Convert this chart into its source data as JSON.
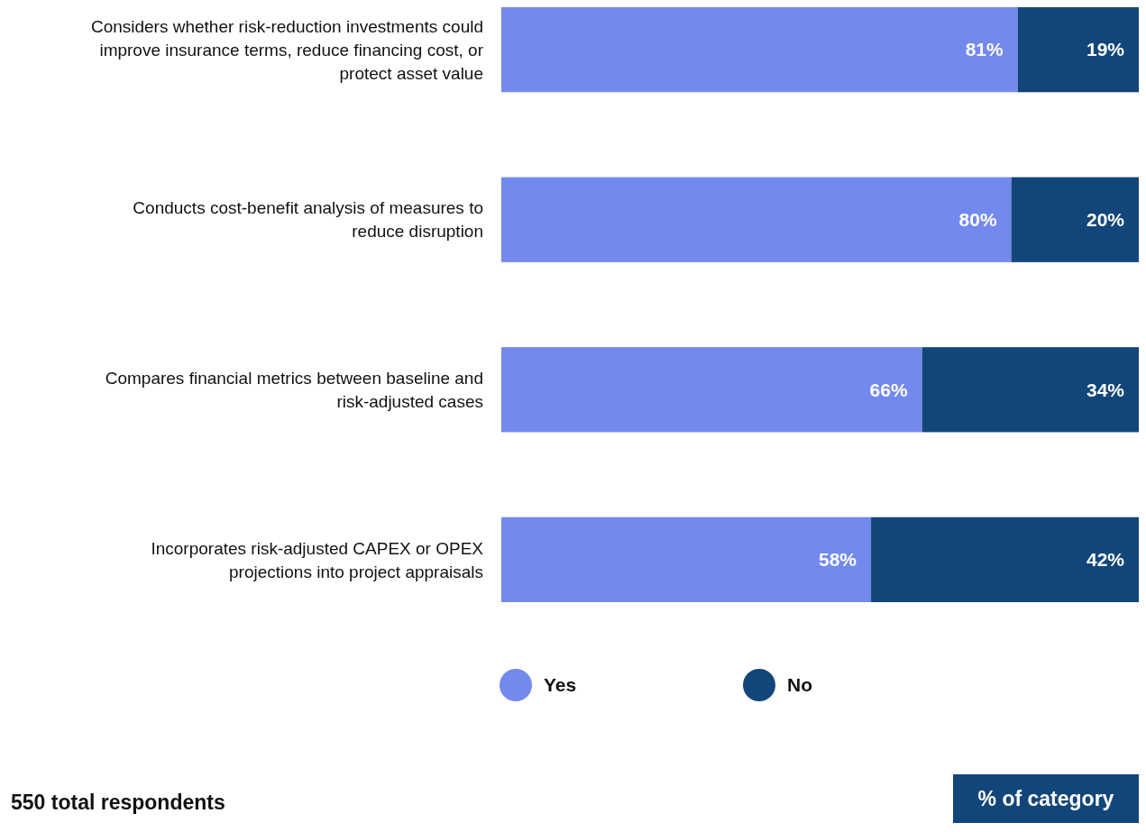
{
  "chart_data": {
    "type": "bar",
    "orientation": "horizontal",
    "stacked": true,
    "categories": [
      "Considers whether risk-reduction investments could improve insurance terms, reduce financing cost, or protect asset value",
      "Conducts cost-benefit analysis of measures to reduce disruption",
      "Compares financial metrics between baseline and risk-adjusted cases",
      "Incorporates risk-adjusted CAPEX or OPEX projections into project appraisals"
    ],
    "series": [
      {
        "name": "Yes",
        "color": "#7389ed",
        "values": [
          81,
          80,
          66,
          58
        ],
        "value_labels": [
          "81%",
          "80%",
          "66%",
          "58%"
        ]
      },
      {
        "name": "No",
        "color": "#12467a",
        "values": [
          19,
          20,
          34,
          42
        ],
        "value_labels": [
          "19%",
          "20%",
          "34%",
          "42%"
        ]
      }
    ],
    "xlim": [
      0,
      100
    ],
    "tick_labels": "y",
    "legend": "bottom",
    "annotations": [
      "550 total respondents",
      "% of category"
    ]
  }
}
